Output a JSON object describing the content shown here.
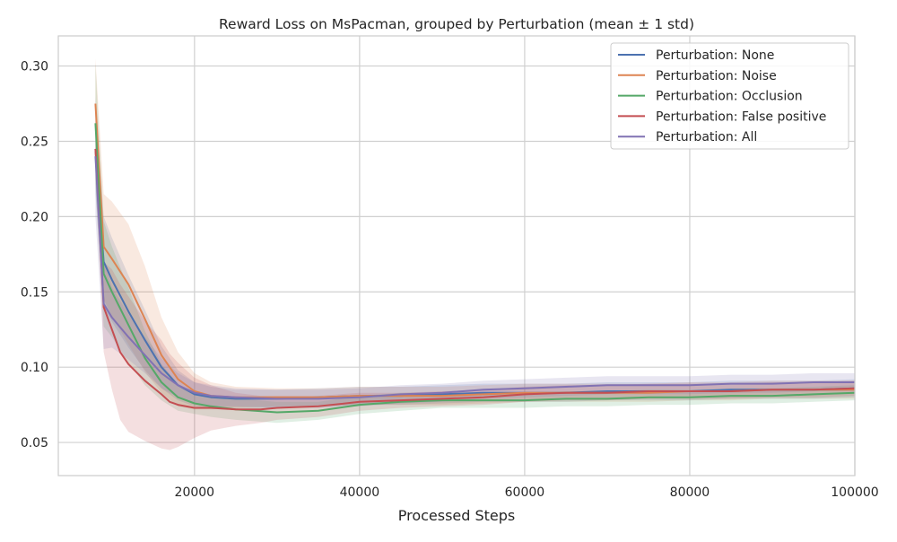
{
  "chart_data": {
    "type": "line",
    "title": "Reward Loss on MsPacman, grouped by Perturbation (mean ± 1 std)",
    "xlabel": "Processed Steps",
    "ylabel": "",
    "xlim": [
      3500,
      100000
    ],
    "ylim": [
      0.028,
      0.32
    ],
    "x_ticks": [
      20000,
      40000,
      60000,
      80000,
      100000
    ],
    "x_tick_labels": [
      "20000",
      "40000",
      "60000",
      "80000",
      "100000"
    ],
    "y_ticks": [
      0.05,
      0.1,
      0.15,
      0.2,
      0.25,
      0.3
    ],
    "y_tick_labels": [
      "0.05",
      "0.10",
      "0.15",
      "0.20",
      "0.25",
      "0.30"
    ],
    "grid": true,
    "legend_position": "top-right",
    "series": [
      {
        "name": "Perturbation: None",
        "color": "#4c72b0",
        "x": [
          8000,
          9000,
          10000,
          12000,
          14000,
          16000,
          18000,
          20000,
          22000,
          25000,
          30000,
          35000,
          40000,
          45000,
          50000,
          55000,
          60000,
          65000,
          70000,
          75000,
          80000,
          85000,
          90000,
          95000,
          100000
        ],
        "mean": [
          0.245,
          0.17,
          0.158,
          0.137,
          0.118,
          0.1,
          0.088,
          0.082,
          0.08,
          0.079,
          0.079,
          0.08,
          0.081,
          0.081,
          0.082,
          0.083,
          0.083,
          0.083,
          0.084,
          0.084,
          0.084,
          0.085,
          0.085,
          0.085,
          0.086
        ],
        "std": [
          0.03,
          0.03,
          0.028,
          0.024,
          0.02,
          0.014,
          0.01,
          0.008,
          0.007,
          0.006,
          0.006,
          0.006,
          0.006,
          0.006,
          0.006,
          0.006,
          0.006,
          0.006,
          0.006,
          0.006,
          0.006,
          0.006,
          0.006,
          0.006,
          0.006
        ]
      },
      {
        "name": "Perturbation: Noise",
        "color": "#dd8452",
        "x": [
          8000,
          9000,
          10000,
          12000,
          14000,
          16000,
          18000,
          20000,
          22000,
          25000,
          30000,
          35000,
          40000,
          45000,
          50000,
          55000,
          60000,
          65000,
          70000,
          75000,
          80000,
          85000,
          90000,
          95000,
          100000
        ],
        "mean": [
          0.275,
          0.18,
          0.172,
          0.155,
          0.132,
          0.108,
          0.092,
          0.084,
          0.081,
          0.08,
          0.08,
          0.08,
          0.081,
          0.081,
          0.081,
          0.082,
          0.083,
          0.083,
          0.083,
          0.083,
          0.084,
          0.084,
          0.085,
          0.085,
          0.085
        ],
        "std": [
          0.03,
          0.035,
          0.038,
          0.04,
          0.035,
          0.025,
          0.018,
          0.012,
          0.009,
          0.007,
          0.006,
          0.006,
          0.006,
          0.006,
          0.006,
          0.006,
          0.006,
          0.006,
          0.006,
          0.006,
          0.006,
          0.006,
          0.006,
          0.006,
          0.006
        ]
      },
      {
        "name": "Perturbation: Occlusion",
        "color": "#55a868",
        "x": [
          8000,
          9000,
          10000,
          12000,
          14000,
          16000,
          18000,
          20000,
          22000,
          25000,
          30000,
          35000,
          40000,
          45000,
          50000,
          55000,
          60000,
          65000,
          70000,
          75000,
          80000,
          85000,
          90000,
          95000,
          100000
        ],
        "mean": [
          0.262,
          0.162,
          0.15,
          0.128,
          0.106,
          0.09,
          0.08,
          0.076,
          0.074,
          0.072,
          0.07,
          0.071,
          0.075,
          0.077,
          0.078,
          0.078,
          0.078,
          0.079,
          0.079,
          0.08,
          0.08,
          0.081,
          0.081,
          0.082,
          0.083
        ],
        "std": [
          0.04,
          0.035,
          0.03,
          0.025,
          0.018,
          0.012,
          0.009,
          0.007,
          0.007,
          0.007,
          0.007,
          0.006,
          0.006,
          0.006,
          0.005,
          0.005,
          0.005,
          0.005,
          0.005,
          0.005,
          0.005,
          0.005,
          0.005,
          0.005,
          0.005
        ]
      },
      {
        "name": "Perturbation: False positive",
        "color": "#c44e52",
        "x": [
          8000,
          9000,
          10000,
          11000,
          12000,
          14000,
          16000,
          17000,
          18000,
          20000,
          22000,
          25000,
          28000,
          30000,
          35000,
          40000,
          45000,
          50000,
          55000,
          60000,
          65000,
          70000,
          75000,
          80000,
          85000,
          90000,
          95000,
          100000
        ],
        "mean": [
          0.245,
          0.14,
          0.125,
          0.11,
          0.102,
          0.091,
          0.082,
          0.077,
          0.075,
          0.073,
          0.073,
          0.072,
          0.072,
          0.073,
          0.074,
          0.077,
          0.078,
          0.079,
          0.08,
          0.082,
          0.083,
          0.083,
          0.084,
          0.084,
          0.084,
          0.085,
          0.085,
          0.086
        ],
        "std": [
          0.02,
          0.03,
          0.04,
          0.045,
          0.045,
          0.04,
          0.036,
          0.032,
          0.028,
          0.02,
          0.015,
          0.011,
          0.009,
          0.008,
          0.007,
          0.006,
          0.005,
          0.005,
          0.005,
          0.005,
          0.005,
          0.005,
          0.005,
          0.005,
          0.005,
          0.005,
          0.005,
          0.005
        ]
      },
      {
        "name": "Perturbation: All",
        "color": "#8172b3",
        "x": [
          8000,
          9000,
          10000,
          12000,
          14000,
          16000,
          18000,
          20000,
          22000,
          25000,
          30000,
          35000,
          40000,
          45000,
          50000,
          55000,
          60000,
          65000,
          70000,
          75000,
          80000,
          85000,
          90000,
          95000,
          100000
        ],
        "mean": [
          0.24,
          0.142,
          0.133,
          0.12,
          0.108,
          0.096,
          0.088,
          0.083,
          0.081,
          0.08,
          0.079,
          0.079,
          0.08,
          0.082,
          0.083,
          0.085,
          0.086,
          0.087,
          0.088,
          0.088,
          0.088,
          0.089,
          0.089,
          0.09,
          0.09
        ],
        "std": [
          0.04,
          0.03,
          0.02,
          0.015,
          0.012,
          0.01,
          0.008,
          0.007,
          0.007,
          0.006,
          0.006,
          0.006,
          0.006,
          0.006,
          0.006,
          0.006,
          0.006,
          0.006,
          0.006,
          0.006,
          0.006,
          0.006,
          0.006,
          0.006,
          0.006
        ]
      }
    ]
  }
}
